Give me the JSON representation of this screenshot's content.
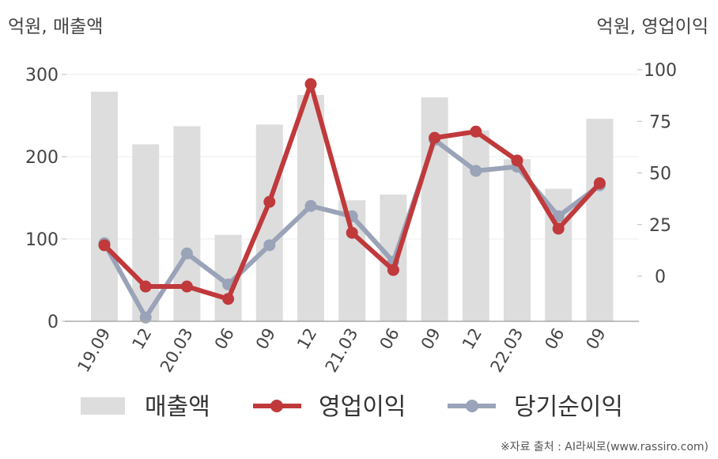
{
  "units": {
    "left": "억원, 매출액",
    "right": "억원, 영업이익"
  },
  "source": "※자료 출처 : AI라씨로(www.rassiro.com)",
  "chart_data": {
    "type": "bar+line",
    "categories": [
      "19.09",
      "12",
      "20.03",
      "06",
      "09",
      "12",
      "21.03",
      "06",
      "09",
      "12",
      "22.03",
      "06",
      "09"
    ],
    "left_axis": {
      "ticks": [
        0,
        100,
        200,
        300
      ],
      "range": [
        0,
        300
      ]
    },
    "right_axis": {
      "ticks": [
        0,
        25,
        50,
        75,
        100
      ],
      "range": [
        -22,
        100
      ]
    },
    "series": [
      {
        "name": "매출액",
        "type": "bar",
        "axis": "left",
        "color": "#dddddd",
        "values": [
          279,
          215,
          237,
          105,
          239,
          275,
          147,
          154,
          272,
          232,
          197,
          161,
          246
        ]
      },
      {
        "name": "영업이익",
        "type": "line",
        "axis": "right",
        "color": "#c0393b",
        "values": [
          15,
          -5,
          -5,
          -11,
          36,
          93,
          21,
          3,
          67,
          70,
          56,
          23,
          45
        ]
      },
      {
        "name": "당기순이익",
        "type": "line",
        "axis": "right",
        "color": "#9aa3b8",
        "values": [
          16,
          -20,
          11,
          -4,
          15,
          34,
          29,
          7,
          66,
          51,
          53,
          29,
          44
        ]
      }
    ],
    "grid": true,
    "legend_position": "bottom"
  }
}
